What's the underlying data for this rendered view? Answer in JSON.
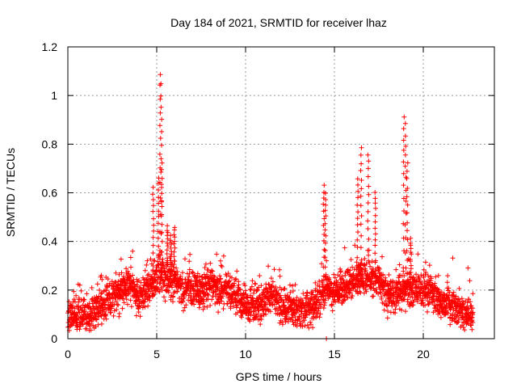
{
  "chart_data": {
    "type": "scatter",
    "title": "Day 184 of 2021, SRMTID for receiver lhaz",
    "xlabel": "GPS time / hours",
    "ylabel": "SRMTID / TECUs",
    "xlim": [
      0,
      24
    ],
    "ylim": [
      0,
      1.2
    ],
    "grid": true,
    "marker": "+",
    "marker_color": "#ff0000",
    "x_ticks": [
      0,
      5,
      10,
      15,
      20
    ],
    "y_ticks": [
      0,
      0.2,
      0.4,
      0.6,
      0.8,
      1,
      1.2
    ],
    "x_tick_labels": [
      "0",
      "5",
      "10",
      "15",
      "20"
    ],
    "y_tick_labels": [
      "0",
      "0.2",
      "0.4",
      "0.6",
      "0.8",
      "1",
      "1.2"
    ],
    "series": [
      {
        "name": "SRMTID",
        "baseline": [
          [
            0.0,
            0.09
          ],
          [
            0.5,
            0.11
          ],
          [
            1.0,
            0.09
          ],
          [
            1.5,
            0.11
          ],
          [
            2.0,
            0.14
          ],
          [
            2.5,
            0.17
          ],
          [
            3.0,
            0.2
          ],
          [
            3.5,
            0.22
          ],
          [
            4.0,
            0.17
          ],
          [
            4.5,
            0.2
          ],
          [
            5.0,
            0.25
          ],
          [
            5.5,
            0.26
          ],
          [
            6.0,
            0.23
          ],
          [
            6.5,
            0.2
          ],
          [
            7.0,
            0.21
          ],
          [
            7.5,
            0.19
          ],
          [
            8.0,
            0.22
          ],
          [
            8.5,
            0.2
          ],
          [
            9.0,
            0.2
          ],
          [
            9.5,
            0.17
          ],
          [
            10.0,
            0.14
          ],
          [
            10.5,
            0.13
          ],
          [
            11.0,
            0.15
          ],
          [
            11.5,
            0.19
          ],
          [
            12.0,
            0.13
          ],
          [
            12.5,
            0.14
          ],
          [
            13.0,
            0.11
          ],
          [
            13.5,
            0.12
          ],
          [
            14.0,
            0.15
          ],
          [
            14.5,
            0.21
          ],
          [
            15.0,
            0.19
          ],
          [
            15.5,
            0.21
          ],
          [
            16.0,
            0.22
          ],
          [
            16.5,
            0.26
          ],
          [
            17.0,
            0.25
          ],
          [
            17.5,
            0.23
          ],
          [
            18.0,
            0.17
          ],
          [
            18.5,
            0.19
          ],
          [
            19.0,
            0.2
          ],
          [
            19.5,
            0.21
          ],
          [
            20.0,
            0.21
          ],
          [
            20.5,
            0.18
          ],
          [
            21.0,
            0.15
          ],
          [
            21.5,
            0.13
          ],
          [
            22.0,
            0.11
          ],
          [
            22.5,
            0.1
          ],
          [
            22.8,
            0.09
          ]
        ],
        "spikes": [
          {
            "x": [
              4.8,
              5.1,
              5.2,
              5.25,
              5.3
            ],
            "peak": [
              0.62,
              0.66,
              1.09,
              1.05,
              0.72
            ]
          },
          {
            "x": [
              5.6,
              5.8,
              6.0
            ],
            "peak": [
              0.46,
              0.42,
              0.46
            ]
          },
          {
            "x": [
              14.4,
              14.5
            ],
            "peak": [
              0.63,
              0.6
            ]
          },
          {
            "x": [
              16.3,
              16.5,
              16.9,
              17.3
            ],
            "peak": [
              0.66,
              0.79,
              0.76,
              0.6
            ]
          },
          {
            "x": [
              18.9,
              19.0,
              19.1,
              19.3
            ],
            "peak": [
              0.91,
              0.88,
              0.72,
              0.41
            ]
          }
        ],
        "low_outliers": [
          [
            14.55,
            0.0
          ]
        ]
      }
    ]
  }
}
